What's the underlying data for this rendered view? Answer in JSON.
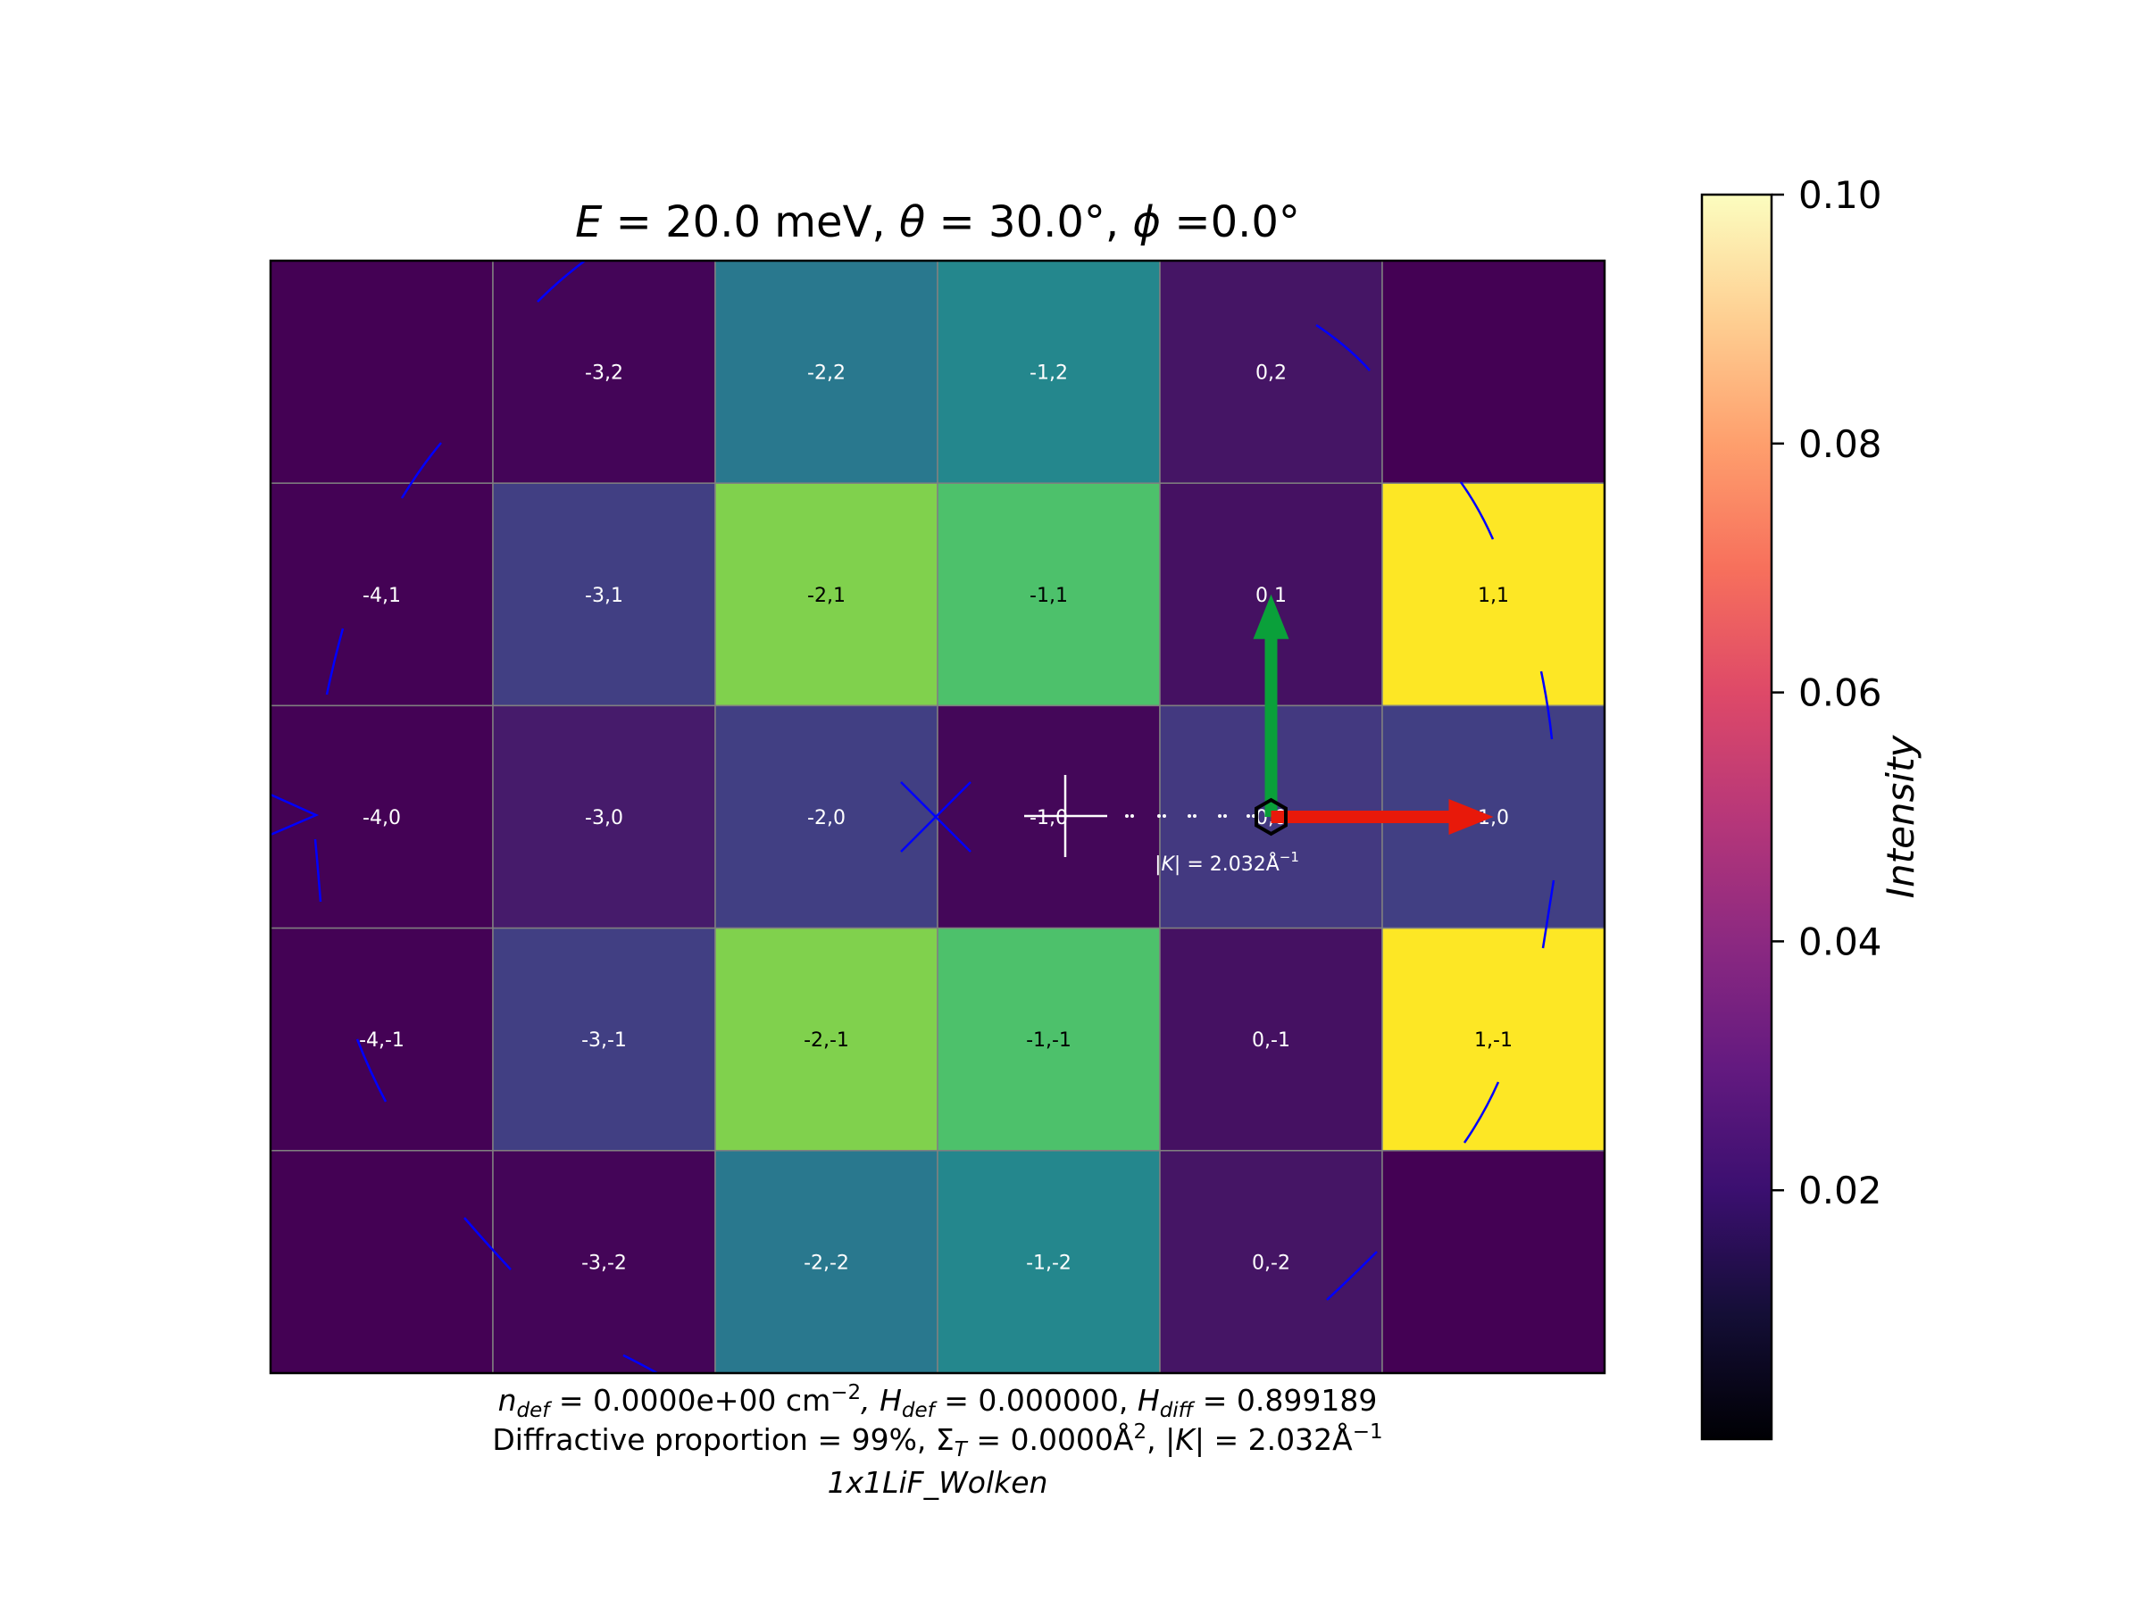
{
  "chart_data": {
    "type": "heatmap",
    "title": {
      "e_symbol": "E",
      "e_value": " = 20.0 meV, ",
      "theta_symbol": "θ",
      "theta_value": " = 30.0°, ",
      "phi_symbol": "ϕ",
      "phi_value": " =0.0°"
    },
    "h_range": [
      -4,
      1
    ],
    "k_range": [
      -2,
      2
    ],
    "cells": [
      {
        "h": -4,
        "k": 2,
        "label": "",
        "intensity": 0.0225
      },
      {
        "h": -3,
        "k": 2,
        "label": "-3,2",
        "intensity": 0.0235
      },
      {
        "h": -2,
        "k": 2,
        "label": "-2,2",
        "intensity": 0.0535
      },
      {
        "h": -1,
        "k": 2,
        "label": "-1,2",
        "intensity": 0.0578
      },
      {
        "h": 0,
        "k": 2,
        "label": "0,2",
        "intensity": 0.027
      },
      {
        "h": 1,
        "k": 2,
        "label": "",
        "intensity": 0.0225
      },
      {
        "h": -4,
        "k": 1,
        "label": "-4,1",
        "intensity": 0.0228
      },
      {
        "h": -3,
        "k": 1,
        "label": "-3,1",
        "intensity": 0.037
      },
      {
        "h": -2,
        "k": 1,
        "label": "-2,1",
        "intensity": 0.084
      },
      {
        "h": -1,
        "k": 1,
        "label": "-1,1",
        "intensity": 0.077
      },
      {
        "h": 0,
        "k": 1,
        "label": "0,1",
        "intensity": 0.0262
      },
      {
        "h": 1,
        "k": 1,
        "label": "1,1",
        "intensity": 0.0985
      },
      {
        "h": -4,
        "k": 0,
        "label": "-4,0",
        "intensity": 0.0228
      },
      {
        "h": -3,
        "k": 0,
        "label": "-3,0",
        "intensity": 0.0285
      },
      {
        "h": -2,
        "k": 0,
        "label": "-2,0",
        "intensity": 0.037
      },
      {
        "h": -1,
        "k": 0,
        "label": "-1,0",
        "intensity": 0.0238
      },
      {
        "h": 0,
        "k": 0,
        "label": "0,0",
        "intensity": 0.0355
      },
      {
        "h": 1,
        "k": 0,
        "label": "1,0",
        "intensity": 0.037
      },
      {
        "h": -4,
        "k": -1,
        "label": "-4,-1",
        "intensity": 0.0228
      },
      {
        "h": -3,
        "k": -1,
        "label": "-3,-1",
        "intensity": 0.037
      },
      {
        "h": -2,
        "k": -1,
        "label": "-2,-1",
        "intensity": 0.084
      },
      {
        "h": -1,
        "k": -1,
        "label": "-1,-1",
        "intensity": 0.077
      },
      {
        "h": 0,
        "k": -1,
        "label": "0,-1",
        "intensity": 0.0262
      },
      {
        "h": 1,
        "k": -1,
        "label": "1,-1",
        "intensity": 0.0985
      },
      {
        "h": -4,
        "k": -2,
        "label": "",
        "intensity": 0.0225
      },
      {
        "h": -3,
        "k": -2,
        "label": "-3,-2",
        "intensity": 0.0235
      },
      {
        "h": -2,
        "k": -2,
        "label": "-2,-2",
        "intensity": 0.0535
      },
      {
        "h": -1,
        "k": -2,
        "label": "-1,-2",
        "intensity": 0.0578
      },
      {
        "h": 0,
        "k": -2,
        "label": "0,-2",
        "intensity": 0.027
      },
      {
        "h": 1,
        "k": -2,
        "label": "",
        "intensity": 0.0225
      }
    ],
    "colorbar": {
      "label": "Intensity",
      "min": 0.0,
      "max": 0.1,
      "colormap": "magma",
      "ticks": [
        {
          "value": 0.02,
          "label": "0.02"
        },
        {
          "value": 0.04,
          "label": "0.04"
        },
        {
          "value": 0.06,
          "label": "0.06"
        },
        {
          "value": 0.08,
          "label": "0.08"
        },
        {
          "value": 0.1,
          "label": "0.10"
        }
      ]
    },
    "vectors": {
      "specular_h": 0,
      "specular_k": 0,
      "b1": {
        "dh": 1,
        "dk": 0,
        "color": "#e8190a"
      },
      "b2": {
        "dh": 0,
        "dk": 1,
        "color": "#0aa03a"
      }
    },
    "k_magnitude_label": {
      "prefix": "|",
      "symbol": "K",
      "suffix": "| = 2.032Å",
      "exponent": "−1"
    },
    "footer": {
      "line1": {
        "n_symbol": "n",
        "n_sub": "def",
        "n_value": " = 0.0000e+00 cm",
        "n_exp": "−2",
        "hdef_symbol": ", H",
        "hdef_sub": "def",
        "hdef_value": " = 0.000000, ",
        "hdiff_symbol": "H",
        "hdiff_sub": "diff",
        "hdiff_value": " = 0.899189"
      },
      "line2": {
        "prefix": "Diffractive proportion = 99%, ",
        "sigma_symbol": "Σ",
        "sigma_sub": "T",
        "sigma_value": " = 0.0000Å",
        "sigma_exp": "2",
        "k_prefix": ", |",
        "k_symbol": "K",
        "k_value": "| = 2.032Å",
        "k_exp": "−1"
      },
      "line3": "1x1LiF_Wolken"
    },
    "colors": {
      "cell_edge": "#808080",
      "overlay_lines": "#0000ff",
      "marker_white": "#ffffff",
      "marker_black": "#000000"
    }
  }
}
